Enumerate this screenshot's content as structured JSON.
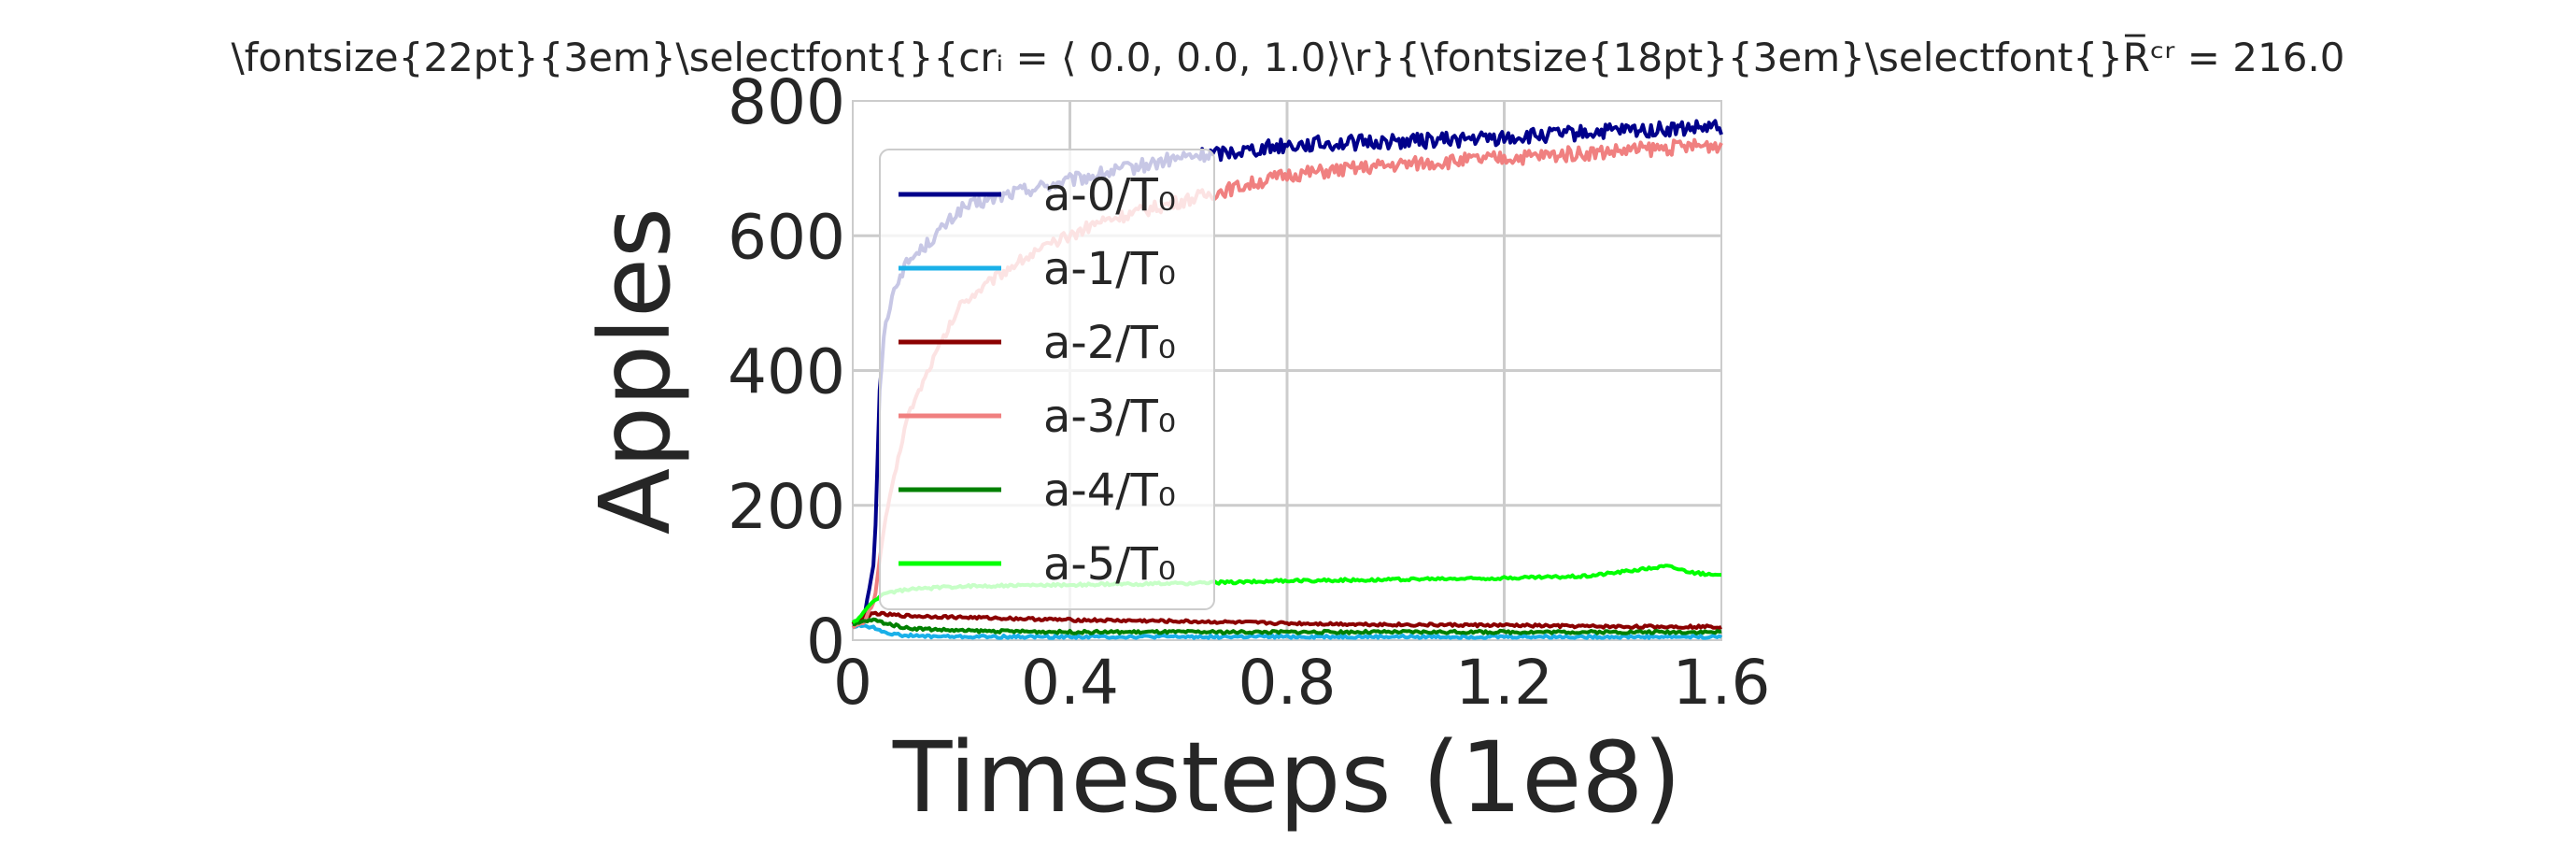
{
  "chart_data": {
    "type": "line",
    "title": "\\fontsize{22pt}{3em}\\selectfont{}{crᵢ = ⟨ 0.0, 0.0, 1.0⟩\\r}{\\fontsize{18pt}{3em}\\selectfont{}R̅ᶜʳ = 216.0",
    "xlabel": "Timesteps (1e8)",
    "ylabel": "Apples",
    "xlim": [
      0,
      1.6
    ],
    "ylim": [
      0,
      800
    ],
    "xticks": [
      0,
      0.4,
      0.8,
      1.2,
      1.6
    ],
    "xtick_labels": [
      "0",
      "0.4",
      "0.8",
      "1.2",
      "1.6"
    ],
    "yticks": [
      0,
      200,
      400,
      600,
      800
    ],
    "ytick_labels": [
      "0",
      "200",
      "400",
      "600",
      "800"
    ],
    "grid": true,
    "legend_position": "upper-left",
    "series": [
      {
        "name": "a-0/T₀",
        "color": "#00008b",
        "x": [
          0,
          0.02,
          0.04,
          0.05,
          0.06,
          0.08,
          0.1,
          0.14,
          0.2,
          0.3,
          0.45,
          0.6,
          0.8,
          1.0,
          1.2,
          1.4,
          1.6
        ],
        "y": [
          22,
          30,
          120,
          380,
          470,
          530,
          560,
          590,
          640,
          665,
          690,
          715,
          735,
          740,
          745,
          755,
          760
        ]
      },
      {
        "name": "a-1/T₀",
        "color": "#1ab0e8",
        "x": [
          0,
          0.02,
          0.04,
          0.06,
          0.08,
          0.12,
          0.2,
          0.4,
          0.8,
          1.2,
          1.6
        ],
        "y": [
          20,
          22,
          18,
          12,
          8,
          6,
          5,
          5,
          5,
          5,
          5
        ]
      },
      {
        "name": "a-2/T₀",
        "color": "#8b0000",
        "x": [
          0,
          0.02,
          0.04,
          0.06,
          0.1,
          0.2,
          0.4,
          0.6,
          0.8,
          1.0,
          1.2,
          1.4,
          1.6
        ],
        "y": [
          25,
          35,
          40,
          38,
          36,
          34,
          30,
          28,
          25,
          23,
          22,
          20,
          20
        ]
      },
      {
        "name": "a-3/T₀",
        "color": "#f08080",
        "x": [
          0,
          0.02,
          0.04,
          0.06,
          0.1,
          0.15,
          0.2,
          0.3,
          0.45,
          0.6,
          0.8,
          1.0,
          1.2,
          1.4,
          1.6
        ],
        "y": [
          20,
          25,
          60,
          180,
          330,
          420,
          500,
          560,
          620,
          650,
          690,
          705,
          715,
          725,
          735
        ]
      },
      {
        "name": "a-4/T₀",
        "color": "#008000",
        "x": [
          0,
          0.02,
          0.04,
          0.06,
          0.1,
          0.2,
          0.4,
          0.8,
          1.2,
          1.6
        ],
        "y": [
          22,
          28,
          30,
          25,
          18,
          14,
          12,
          12,
          12,
          12
        ]
      },
      {
        "name": "a-5/T₀",
        "color": "#00ff00",
        "x": [
          0,
          0.02,
          0.04,
          0.06,
          0.1,
          0.2,
          0.4,
          0.6,
          0.8,
          1.0,
          1.2,
          1.35,
          1.45,
          1.5,
          1.55,
          1.6
        ],
        "y": [
          25,
          40,
          60,
          70,
          75,
          80,
          82,
          84,
          88,
          90,
          92,
          95,
          105,
          110,
          100,
          95
        ]
      }
    ]
  }
}
